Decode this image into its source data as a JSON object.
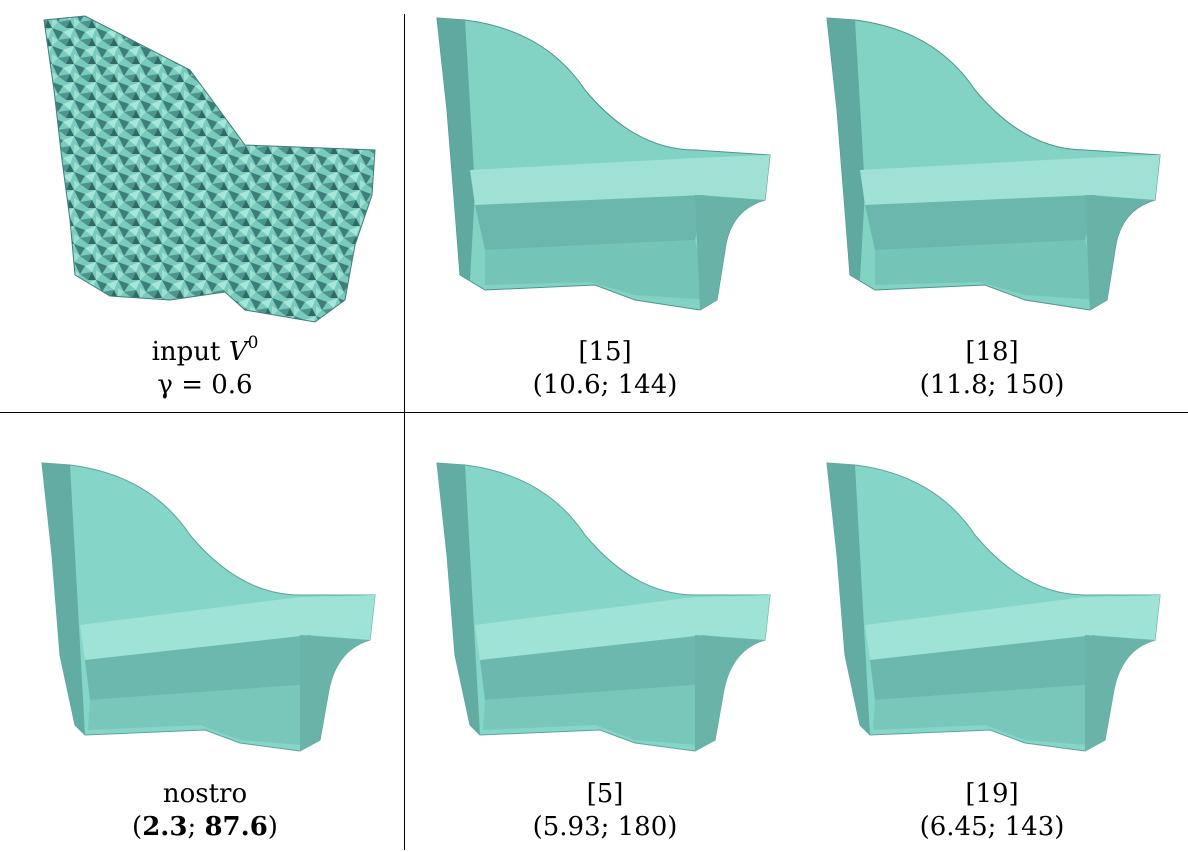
{
  "colors": {
    "mesh": "#7fd4c5",
    "mesh_dark": "#3f7f7a",
    "mesh_mid": "#5fa9a0",
    "rule": "#000000"
  },
  "panels": [
    {
      "id": "input",
      "line1_prefix": "input ",
      "line1_var": "V",
      "line1_sup": "0",
      "line2": "γ = 0.6"
    },
    {
      "id": "ref15",
      "line1": "[15]",
      "line2": "(10.6; 144)"
    },
    {
      "id": "ref18",
      "line1": "[18]",
      "line2": "(11.8; 150)"
    },
    {
      "id": "ours",
      "line1": "nostro",
      "line2_open": "(",
      "line2_a": "2.3",
      "line2_sep": "; ",
      "line2_b": "87.6",
      "line2_close": ")"
    },
    {
      "id": "ref5",
      "line1": "[5]",
      "line2": "(5.93; 180)"
    },
    {
      "id": "ref19",
      "line1": "[19]",
      "line2": "(6.45; 143)"
    }
  ]
}
